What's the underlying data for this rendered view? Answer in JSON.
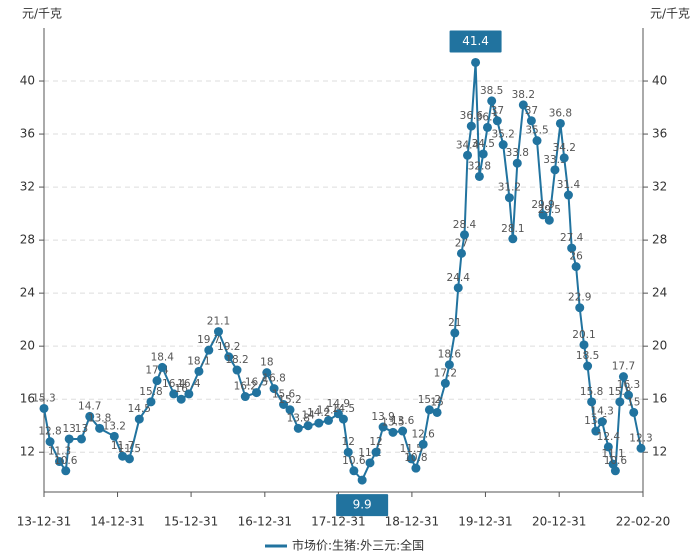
{
  "chart_data": {
    "type": "line",
    "y_label": "元/千克",
    "y2_label": "元/千克",
    "xlim": [
      "13-12-31",
      "22-02-20"
    ],
    "xticks": [
      "13-12-31",
      "14-12-31",
      "15-12-31",
      "16-12-31",
      "17-12-31",
      "18-12-31",
      "19-12-31",
      "20-12-31",
      "22-02-20"
    ],
    "ylim": [
      9,
      44
    ],
    "yticks": [
      12,
      16,
      20,
      24,
      28,
      32,
      36,
      40
    ],
    "y2lim": [
      9,
      44
    ],
    "y2ticks": [
      12,
      16,
      20,
      24,
      28,
      32,
      36,
      40
    ],
    "grid": true,
    "legend": "bottom",
    "x": [
      "13-12-31",
      "14-01-30",
      "14-03-18",
      "14-04-18",
      "14-05-05",
      "14-07-05",
      "14-08-15",
      "14-10-03",
      "14-12-15",
      "15-01-25",
      "15-02-28",
      "15-04-18",
      "15-06-15",
      "15-07-15",
      "15-08-10",
      "15-10-06",
      "15-11-12",
      "15-12-20",
      "16-02-08",
      "16-03-28",
      "16-05-15",
      "16-07-05",
      "16-08-15",
      "16-09-25",
      "16-11-20",
      "17-01-10",
      "17-02-15",
      "17-04-03",
      "17-05-05",
      "17-06-15",
      "17-08-03",
      "17-09-25",
      "17-11-12",
      "17-12-31",
      "18-01-25",
      "18-02-18",
      "18-03-18",
      "18-04-28",
      "18-06-06",
      "18-07-06",
      "18-08-10",
      "18-09-28",
      "18-11-15",
      "18-12-28",
      "19-01-20",
      "19-02-25",
      "19-03-28",
      "19-05-05",
      "19-06-15",
      "19-07-05",
      "19-08-01",
      "19-08-18",
      "19-09-03",
      "19-09-18",
      "19-10-03",
      "19-10-22",
      "19-11-12",
      "19-12-01",
      "19-12-20",
      "20-01-10",
      "20-01-31",
      "20-02-28",
      "20-03-28",
      "20-04-28",
      "20-05-15",
      "20-06-06",
      "20-07-06",
      "20-08-15",
      "20-09-12",
      "20-10-12",
      "20-11-12",
      "20-12-10",
      "21-01-06",
      "21-01-25",
      "21-02-15",
      "21-03-03",
      "21-03-25",
      "21-04-12",
      "21-05-03",
      "21-05-21",
      "21-06-10",
      "21-07-01",
      "21-08-01",
      "21-09-01",
      "21-09-25",
      "21-10-06",
      "21-10-28",
      "21-11-15",
      "21-12-10",
      "22-01-05",
      "22-02-10"
    ],
    "series": [
      {
        "name": "市场价:生猪:外三元:全国",
        "color": "#21739f",
        "values": [
          15.3,
          12.8,
          11.3,
          10.6,
          13,
          13,
          14.7,
          13.8,
          13.2,
          11.7,
          11.5,
          14.5,
          15.8,
          17.4,
          18.4,
          16.4,
          16,
          16.4,
          18.1,
          19.7,
          21.1,
          19.2,
          18.2,
          16.2,
          16.5,
          18,
          16.8,
          15.6,
          15.2,
          13.8,
          14,
          14.2,
          14.4,
          14.9,
          14.5,
          12,
          10.6,
          9.9,
          11.2,
          12,
          13.9,
          13.5,
          13.6,
          11.5,
          10.8,
          12.6,
          15.2,
          15,
          17.2,
          18.6,
          21,
          24.4,
          27,
          28.4,
          34.4,
          36.6,
          41.4,
          32.8,
          34.5,
          36.5,
          38.5,
          37,
          35.2,
          31.2,
          28.1,
          33.8,
          38.2,
          37,
          35.5,
          29.9,
          29.5,
          33.3,
          36.8,
          34.2,
          31.4,
          27.4,
          26,
          22.9,
          20.1,
          18.5,
          15.8,
          13.6,
          14.3,
          12.4,
          11.1,
          10.6,
          15.8,
          17.7,
          16.3,
          15,
          12.3
        ]
      }
    ]
  }
}
